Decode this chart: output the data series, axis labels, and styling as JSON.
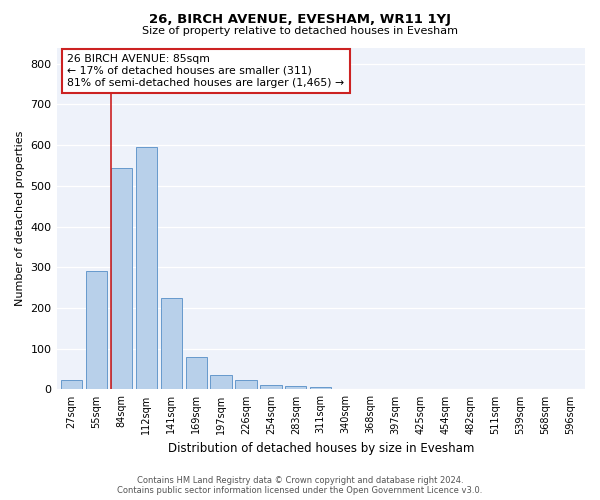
{
  "title": "26, BIRCH AVENUE, EVESHAM, WR11 1YJ",
  "subtitle": "Size of property relative to detached houses in Evesham",
  "xlabel": "Distribution of detached houses by size in Evesham",
  "ylabel": "Number of detached properties",
  "bar_color": "#b8d0ea",
  "bar_edge_color": "#6699cc",
  "highlight_color": "#cc2222",
  "background_color": "#eef2fa",
  "grid_color": "#ffffff",
  "categories": [
    "27sqm",
    "55sqm",
    "84sqm",
    "112sqm",
    "141sqm",
    "169sqm",
    "197sqm",
    "226sqm",
    "254sqm",
    "283sqm",
    "311sqm",
    "340sqm",
    "368sqm",
    "397sqm",
    "425sqm",
    "454sqm",
    "482sqm",
    "511sqm",
    "539sqm",
    "568sqm",
    "596sqm"
  ],
  "values": [
    22,
    290,
    545,
    595,
    225,
    80,
    35,
    22,
    12,
    8,
    5,
    0,
    0,
    0,
    0,
    0,
    0,
    0,
    0,
    0,
    0
  ],
  "highlight_index": 2,
  "annotation_line1": "26 BIRCH AVENUE: 85sqm",
  "annotation_line2": "← 17% of detached houses are smaller (311)",
  "annotation_line3": "81% of semi-detached houses are larger (1,465) →",
  "ylim": [
    0,
    840
  ],
  "yticks": [
    0,
    100,
    200,
    300,
    400,
    500,
    600,
    700,
    800
  ],
  "footer_line1": "Contains HM Land Registry data © Crown copyright and database right 2024.",
  "footer_line2": "Contains public sector information licensed under the Open Government Licence v3.0."
}
